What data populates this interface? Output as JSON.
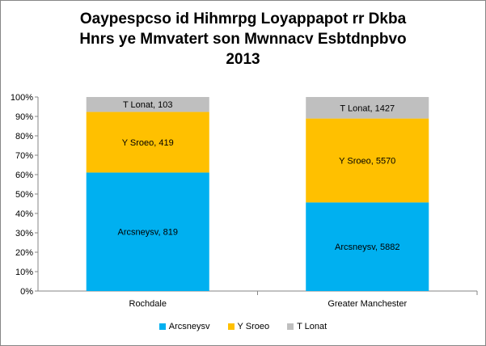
{
  "chart_data": {
    "type": "bar",
    "stacked": "percent",
    "title_lines": [
      "Oaypespcso  id Hihmrpg Loyappapot rr Dkba",
      "Hnrs ye Mmvatert son Mwnnacv Esbtdnpbvo",
      "2013"
    ],
    "categories": [
      "Rochdale",
      "Greater Manchester"
    ],
    "series": [
      {
        "name": "Arcsneysv",
        "color": "#00b0f0",
        "values": [
          819,
          5882
        ],
        "labels": [
          "Arcsneysv, 819",
          "Arcsneysv, 5882"
        ]
      },
      {
        "name": "Y Sroeo",
        "color": "#ffc000",
        "values": [
          419,
          5570
        ],
        "labels": [
          "Y Sroeo, 419",
          "Y Sroeo, 5570"
        ]
      },
      {
        "name": "T Lonat",
        "color": "#bfbfbf",
        "values": [
          103,
          1427
        ],
        "labels": [
          "T Lonat, 103",
          "T Lonat, 1427"
        ]
      }
    ],
    "y_ticks": [
      "0%",
      "10%",
      "20%",
      "30%",
      "40%",
      "50%",
      "60%",
      "70%",
      "80%",
      "90%",
      "100%"
    ],
    "ylim": [
      0,
      1
    ],
    "grid": false,
    "legend_position": "bottom"
  }
}
